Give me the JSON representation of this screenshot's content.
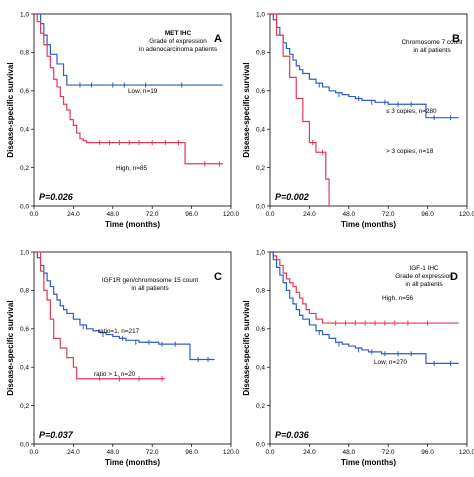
{
  "chart_data": [
    {
      "type": "line",
      "panel_letter": "A",
      "title_lines": [
        "MET IHC",
        "Grade of expression",
        "in adenocarcinoma patients"
      ],
      "title_bold_first": true,
      "xlabel": "Time (months)",
      "ylabel": "Disease-specific survival",
      "x_ticks": [
        "0.0",
        "24.0",
        "48.0",
        "72.0",
        "96.0",
        "120.0"
      ],
      "y_ticks": [
        "0,0",
        "0,2",
        "0,4",
        "0,6",
        "0,8",
        "1,0"
      ],
      "xlim": [
        0,
        120
      ],
      "ylim": [
        0,
        1
      ],
      "p_value": "P=0.026",
      "series": [
        {
          "label": "Low, n=19",
          "color": "#2d5cc6",
          "x": [
            0,
            4,
            6,
            8,
            10,
            14,
            18,
            20,
            22,
            26,
            115
          ],
          "y": [
            1.0,
            0.95,
            0.89,
            0.84,
            0.79,
            0.74,
            0.68,
            0.63,
            0.63,
            0.63,
            0.63
          ],
          "censors": [
            [
              28,
              0.63
            ],
            [
              35,
              0.63
            ],
            [
              48,
              0.63
            ],
            [
              55,
              0.63
            ],
            [
              68,
              0.63
            ],
            [
              90,
              0.63
            ]
          ]
        },
        {
          "label": "High, n=85",
          "color": "#e03a5a",
          "x": [
            0,
            2,
            4,
            6,
            8,
            10,
            12,
            14,
            16,
            18,
            20,
            22,
            24,
            26,
            28,
            30,
            32,
            34,
            36,
            38,
            90,
            92,
            115
          ],
          "y": [
            1.0,
            0.96,
            0.9,
            0.84,
            0.78,
            0.72,
            0.66,
            0.62,
            0.57,
            0.53,
            0.5,
            0.45,
            0.42,
            0.38,
            0.35,
            0.34,
            0.33,
            0.33,
            0.33,
            0.33,
            0.33,
            0.22,
            0.22
          ],
          "censors": [
            [
              40,
              0.33
            ],
            [
              46,
              0.33
            ],
            [
              52,
              0.33
            ],
            [
              58,
              0.33
            ],
            [
              64,
              0.33
            ],
            [
              72,
              0.33
            ],
            [
              80,
              0.33
            ],
            [
              88,
              0.33
            ],
            [
              104,
              0.22
            ],
            [
              113,
              0.22
            ]
          ]
        }
      ]
    },
    {
      "type": "line",
      "panel_letter": "B",
      "title_lines": [
        "Chromosome 7 count",
        "in all patients"
      ],
      "title_bold_first": false,
      "xlabel": "Time (months)",
      "ylabel": "Disease-specific survival",
      "x_ticks": [
        "0.0",
        "24.0",
        "48.0",
        "72.0",
        "96.0",
        "120.0"
      ],
      "y_ticks": [
        "0,0",
        "0,2",
        "0,4",
        "0,6",
        "0,8",
        "1,0"
      ],
      "xlim": [
        0,
        120
      ],
      "ylim": [
        0,
        1
      ],
      "p_value": "P=0.002",
      "series": [
        {
          "label": "≤ 3 copies, n=280",
          "color": "#2d5cc6",
          "x": [
            0,
            2,
            4,
            6,
            8,
            10,
            12,
            14,
            16,
            18,
            20,
            24,
            28,
            32,
            36,
            40,
            44,
            48,
            52,
            56,
            60,
            64,
            68,
            72,
            76,
            80,
            84,
            88,
            92,
            95,
            115
          ],
          "y": [
            1.0,
            0.97,
            0.93,
            0.89,
            0.85,
            0.82,
            0.79,
            0.76,
            0.73,
            0.71,
            0.69,
            0.66,
            0.64,
            0.62,
            0.6,
            0.59,
            0.58,
            0.57,
            0.56,
            0.55,
            0.55,
            0.54,
            0.54,
            0.53,
            0.53,
            0.53,
            0.53,
            0.53,
            0.53,
            0.46,
            0.46
          ],
          "censors": [
            [
              30,
              0.63
            ],
            [
              42,
              0.58
            ],
            [
              54,
              0.56
            ],
            [
              62,
              0.54
            ],
            [
              70,
              0.54
            ],
            [
              78,
              0.53
            ],
            [
              86,
              0.53
            ],
            [
              100,
              0.46
            ],
            [
              110,
              0.46
            ]
          ]
        },
        {
          "label": "> 3 copies, n=18",
          "color": "#e03a5a",
          "x": [
            0,
            4,
            8,
            12,
            16,
            20,
            24,
            28,
            30,
            34,
            36
          ],
          "y": [
            1.0,
            0.89,
            0.78,
            0.67,
            0.56,
            0.44,
            0.33,
            0.28,
            0.28,
            0.14,
            0.0
          ],
          "censors": [
            [
              26,
              0.33
            ],
            [
              32,
              0.28
            ]
          ]
        }
      ]
    },
    {
      "type": "line",
      "panel_letter": "C",
      "title_lines": [
        "IGF1R gen/chromosome 15 count",
        "in all patients"
      ],
      "title_bold_first": false,
      "xlabel": "Time (months)",
      "ylabel": "Disease-specific survival",
      "x_ticks": [
        "0.0",
        "24.0",
        "48.0",
        "72.0",
        "96.0",
        "120.0"
      ],
      "y_ticks": [
        "0,0",
        "0,2",
        "0,4",
        "0,6",
        "0,8",
        "1,0"
      ],
      "xlim": [
        0,
        120
      ],
      "ylim": [
        0,
        1
      ],
      "p_value": "P=0.037",
      "series": [
        {
          "label": "ratio=1, n=217",
          "color": "#2d5cc6",
          "x": [
            0,
            2,
            4,
            6,
            8,
            10,
            12,
            14,
            16,
            18,
            20,
            24,
            28,
            32,
            36,
            40,
            44,
            48,
            52,
            56,
            60,
            64,
            68,
            72,
            76,
            80,
            84,
            88,
            92,
            95,
            110
          ],
          "y": [
            1.0,
            0.97,
            0.93,
            0.89,
            0.85,
            0.82,
            0.78,
            0.75,
            0.72,
            0.7,
            0.68,
            0.65,
            0.62,
            0.6,
            0.59,
            0.58,
            0.57,
            0.56,
            0.55,
            0.54,
            0.54,
            0.53,
            0.53,
            0.53,
            0.52,
            0.52,
            0.52,
            0.52,
            0.52,
            0.44,
            0.44
          ],
          "censors": [
            [
              30,
              0.61
            ],
            [
              42,
              0.57
            ],
            [
              54,
              0.55
            ],
            [
              62,
              0.53
            ],
            [
              70,
              0.53
            ],
            [
              78,
              0.52
            ],
            [
              86,
              0.52
            ],
            [
              100,
              0.44
            ],
            [
              106,
              0.44
            ]
          ]
        },
        {
          "label": "ratio > 1, n=20",
          "color": "#e03a5a",
          "x": [
            0,
            4,
            6,
            8,
            10,
            12,
            16,
            20,
            24,
            26,
            28,
            80
          ],
          "y": [
            1.0,
            0.9,
            0.8,
            0.75,
            0.65,
            0.55,
            0.5,
            0.45,
            0.4,
            0.34,
            0.34,
            0.34
          ],
          "censors": [
            [
              40,
              0.34
            ],
            [
              52,
              0.34
            ],
            [
              64,
              0.34
            ],
            [
              78,
              0.34
            ]
          ]
        }
      ]
    },
    {
      "type": "line",
      "panel_letter": "D",
      "title_lines": [
        "IGF-1 IHC",
        "Grade of expression",
        "in all patients"
      ],
      "title_bold_first": false,
      "xlabel": "Time (months)",
      "ylabel": "Disease-specific survival",
      "x_ticks": [
        "0.0",
        "24.0",
        "48.0",
        "72.0",
        "96.0",
        "120.0"
      ],
      "y_ticks": [
        "0,0",
        "0,2",
        "0,4",
        "0,6",
        "0,8",
        "1,0"
      ],
      "xlim": [
        0,
        120
      ],
      "ylim": [
        0,
        1
      ],
      "p_value": "P=0.036",
      "series": [
        {
          "label": "High, n=56",
          "color": "#e03a5a",
          "x": [
            0,
            2,
            4,
            6,
            8,
            10,
            12,
            14,
            16,
            18,
            20,
            22,
            24,
            28,
            32,
            36,
            115
          ],
          "y": [
            1.0,
            0.98,
            0.96,
            0.93,
            0.89,
            0.86,
            0.84,
            0.82,
            0.79,
            0.76,
            0.73,
            0.7,
            0.68,
            0.65,
            0.63,
            0.63,
            0.63
          ],
          "censors": [
            [
              40,
              0.63
            ],
            [
              46,
              0.63
            ],
            [
              52,
              0.63
            ],
            [
              58,
              0.63
            ],
            [
              64,
              0.63
            ],
            [
              70,
              0.63
            ],
            [
              76,
              0.63
            ],
            [
              84,
              0.63
            ],
            [
              96,
              0.63
            ]
          ]
        },
        {
          "label": "Low, n=270",
          "color": "#2d5cc6",
          "x": [
            0,
            2,
            4,
            6,
            8,
            10,
            12,
            14,
            16,
            18,
            20,
            24,
            28,
            32,
            36,
            40,
            44,
            48,
            52,
            56,
            60,
            64,
            68,
            72,
            76,
            80,
            84,
            88,
            92,
            95,
            115
          ],
          "y": [
            1.0,
            0.96,
            0.92,
            0.88,
            0.84,
            0.8,
            0.76,
            0.73,
            0.7,
            0.67,
            0.65,
            0.62,
            0.59,
            0.57,
            0.55,
            0.53,
            0.52,
            0.51,
            0.5,
            0.49,
            0.48,
            0.48,
            0.47,
            0.47,
            0.47,
            0.47,
            0.47,
            0.47,
            0.47,
            0.42,
            0.42
          ],
          "censors": [
            [
              30,
              0.58
            ],
            [
              42,
              0.52
            ],
            [
              54,
              0.49
            ],
            [
              62,
              0.48
            ],
            [
              70,
              0.47
            ],
            [
              78,
              0.47
            ],
            [
              86,
              0.47
            ],
            [
              100,
              0.42
            ],
            [
              110,
              0.42
            ]
          ]
        }
      ]
    }
  ]
}
